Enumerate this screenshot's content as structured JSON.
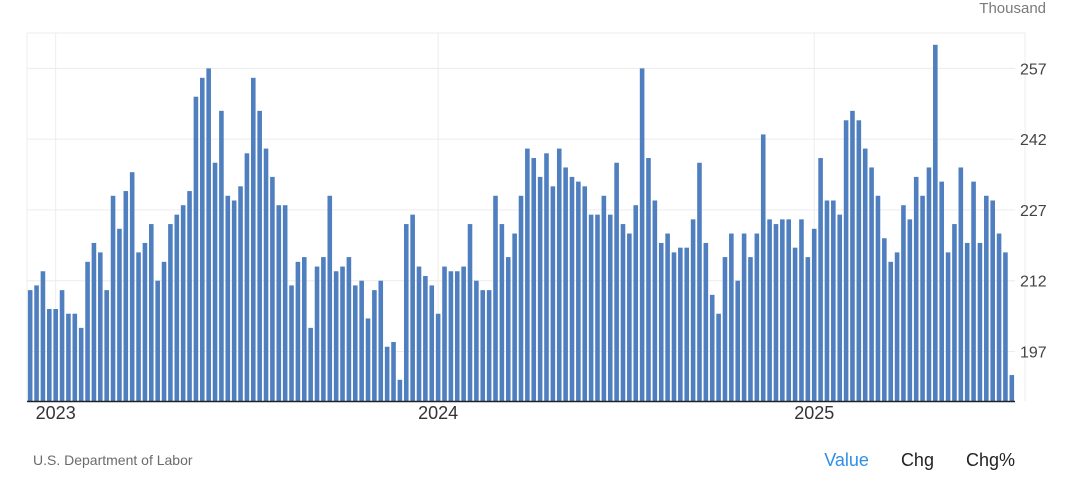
{
  "unit_label": "Thousand",
  "source": "U.S. Department of Labor",
  "tabs": [
    {
      "label": "Value",
      "active": true
    },
    {
      "label": "Chg",
      "active": false
    },
    {
      "label": "Chg%",
      "active": false
    }
  ],
  "colors": {
    "bar": "#4f7fbe",
    "active_tab": "#2f8fe8",
    "grid": "#ececec"
  },
  "chart_data": {
    "type": "bar",
    "title": "",
    "xlabel": "",
    "ylabel": "",
    "unit": "Thousand",
    "ylim": [
      186.5,
      264.5
    ],
    "yticks": [
      197,
      212,
      227,
      242,
      257
    ],
    "x_tick_labels": [
      "2023",
      "2024",
      "2025"
    ],
    "x_tick_label_bar_index": [
      4,
      64,
      123
    ],
    "grid": true,
    "values": [
      210,
      211,
      214,
      206,
      206,
      210,
      205,
      205,
      202,
      216,
      220,
      218,
      210,
      230,
      223,
      231,
      235,
      218,
      220,
      224,
      212,
      216,
      224,
      226,
      228,
      231,
      251,
      255,
      257,
      237,
      248,
      230,
      229,
      232,
      239,
      255,
      248,
      240,
      234,
      228,
      228,
      211,
      216,
      217,
      202,
      215,
      217,
      230,
      214,
      215,
      217,
      211,
      212,
      204,
      210,
      212,
      198,
      199,
      191,
      224,
      226,
      215,
      213,
      211,
      205,
      215,
      214,
      214,
      215,
      224,
      212,
      210,
      210,
      230,
      224,
      217,
      222,
      230,
      240,
      238,
      234,
      239,
      232,
      240,
      236,
      234,
      233,
      232,
      226,
      226,
      230,
      226,
      237,
      224,
      222,
      228,
      257,
      238,
      229,
      220,
      222,
      218,
      219,
      219,
      225,
      237,
      220,
      209,
      205,
      217,
      222,
      212,
      222,
      217,
      222,
      243,
      225,
      224,
      225,
      225,
      219,
      225,
      217,
      223,
      238,
      229,
      229,
      226,
      246,
      248,
      246,
      240,
      236,
      230,
      221,
      216,
      218,
      228,
      225,
      234,
      230,
      236,
      262,
      233,
      218,
      224,
      236,
      220,
      233,
      220,
      230,
      229,
      222,
      218,
      192
    ]
  }
}
